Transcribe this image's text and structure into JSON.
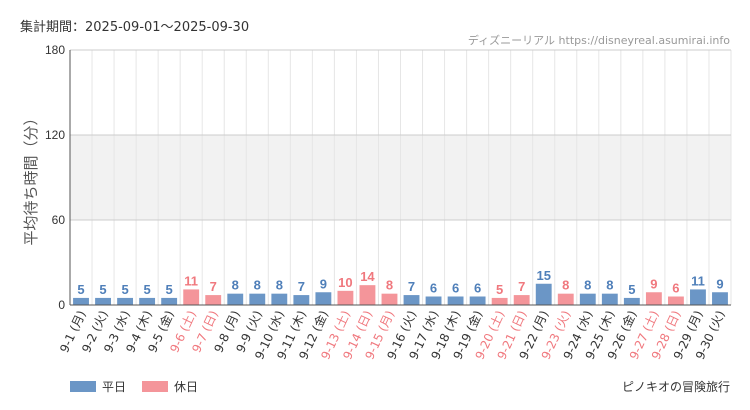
{
  "header": {
    "period": "集計期間：2025-09-01～2025-09-30",
    "source": "ディズニーリアル https://disneyreal.asumirai.info"
  },
  "legend": {
    "weekday": {
      "label": "平日",
      "color": "#6b96c6"
    },
    "holiday": {
      "label": "休日",
      "color": "#f4959a"
    }
  },
  "attraction_name": "ピノキオの冒険旅行",
  "colors": {
    "weekday_text": "#4f7fb9",
    "holiday_text": "#f0787e",
    "band": "#f2f2f2",
    "axis": "#555555"
  },
  "chart_data": {
    "type": "bar",
    "ylabel": "平均待ち時間（分）",
    "ylim": [
      0,
      180
    ],
    "yticks": [
      0,
      60,
      120,
      180
    ],
    "grid": true,
    "shaded_band": [
      60,
      120
    ],
    "legend_position": "bottom-left",
    "categories": [
      "9-1 (月)",
      "9-2 (火)",
      "9-3 (水)",
      "9-4 (木)",
      "9-5 (金)",
      "9-6 (土)",
      "9-7 (日)",
      "9-8 (月)",
      "9-9 (火)",
      "9-10 (水)",
      "9-11 (木)",
      "9-12 (金)",
      "9-13 (土)",
      "9-14 (日)",
      "9-15 (月)",
      "9-16 (火)",
      "9-17 (水)",
      "9-18 (木)",
      "9-19 (金)",
      "9-20 (土)",
      "9-21 (日)",
      "9-22 (月)",
      "9-23 (火)",
      "9-24 (水)",
      "9-25 (木)",
      "9-26 (金)",
      "9-27 (土)",
      "9-28 (日)",
      "9-29 (月)",
      "9-30 (火)"
    ],
    "values": [
      5,
      5,
      5,
      5,
      5,
      11,
      7,
      8,
      8,
      8,
      7,
      9,
      10,
      14,
      8,
      7,
      6,
      6,
      6,
      5,
      7,
      15,
      8,
      8,
      8,
      5,
      9,
      6,
      11,
      9
    ],
    "holiday": [
      false,
      false,
      false,
      false,
      false,
      true,
      true,
      false,
      false,
      false,
      false,
      false,
      true,
      true,
      true,
      false,
      false,
      false,
      false,
      true,
      true,
      false,
      true,
      false,
      false,
      false,
      true,
      true,
      false,
      false
    ]
  }
}
